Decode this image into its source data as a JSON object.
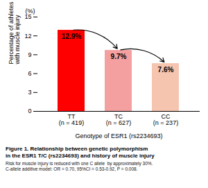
{
  "chart_data": {
    "type": "bar",
    "title": "Figure 1. Relationship between genetic polymorphism\nin the ESR1 T/C (rs2234693) and history of muscle injury",
    "caption": "Risk for muscle injury is reduced with one C allele  by approximately 30%.\nC-allele additive model: OR = 0.70, 95%CI = 0.53-0.92, P = 0.008.",
    "xlabel": "Genotype of ESR1 (rs2234693)",
    "ylabel": "Percentage of athletes\nwith muscle injury",
    "annotations": [
      "(%)"
    ],
    "categories": [
      "TT\n(n = 419)",
      "TC\n(n = 627)",
      "CC\n(n = 237)"
    ],
    "values": [
      12.9,
      9.7,
      7.6
    ],
    "value_labels": [
      "12.9%",
      "9.7%",
      "7.6%"
    ],
    "data_labels": true,
    "colors": [
      "#FF0000",
      "#F4A0A0",
      "#F5C5B0"
    ],
    "ylim": [
      0,
      15
    ],
    "yticks": [
      0,
      3,
      6,
      9,
      12,
      15
    ],
    "grid": false
  }
}
